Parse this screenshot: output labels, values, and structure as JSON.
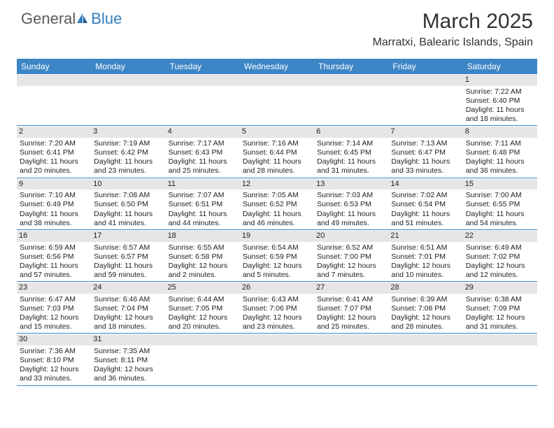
{
  "brand": {
    "name_part1": "General",
    "name_part2": "Blue",
    "color_gray": "#5a5a5a",
    "color_blue": "#2f7fbf"
  },
  "header": {
    "month_title": "March 2025",
    "location": "Marratxi, Balearic Islands, Spain"
  },
  "colors": {
    "header_bg": "#3d86c6",
    "daynum_bg": "#e6e6e6",
    "row_border": "#3d86c6"
  },
  "weekdays": [
    "Sunday",
    "Monday",
    "Tuesday",
    "Wednesday",
    "Thursday",
    "Friday",
    "Saturday"
  ],
  "weeks": [
    [
      {
        "n": "",
        "sr": "",
        "ss": "",
        "dl": ""
      },
      {
        "n": "",
        "sr": "",
        "ss": "",
        "dl": ""
      },
      {
        "n": "",
        "sr": "",
        "ss": "",
        "dl": ""
      },
      {
        "n": "",
        "sr": "",
        "ss": "",
        "dl": ""
      },
      {
        "n": "",
        "sr": "",
        "ss": "",
        "dl": ""
      },
      {
        "n": "",
        "sr": "",
        "ss": "",
        "dl": ""
      },
      {
        "n": "1",
        "sr": "Sunrise: 7:22 AM",
        "ss": "Sunset: 6:40 PM",
        "dl": "Daylight: 11 hours and 18 minutes."
      }
    ],
    [
      {
        "n": "2",
        "sr": "Sunrise: 7:20 AM",
        "ss": "Sunset: 6:41 PM",
        "dl": "Daylight: 11 hours and 20 minutes."
      },
      {
        "n": "3",
        "sr": "Sunrise: 7:19 AM",
        "ss": "Sunset: 6:42 PM",
        "dl": "Daylight: 11 hours and 23 minutes."
      },
      {
        "n": "4",
        "sr": "Sunrise: 7:17 AM",
        "ss": "Sunset: 6:43 PM",
        "dl": "Daylight: 11 hours and 25 minutes."
      },
      {
        "n": "5",
        "sr": "Sunrise: 7:16 AM",
        "ss": "Sunset: 6:44 PM",
        "dl": "Daylight: 11 hours and 28 minutes."
      },
      {
        "n": "6",
        "sr": "Sunrise: 7:14 AM",
        "ss": "Sunset: 6:45 PM",
        "dl": "Daylight: 11 hours and 31 minutes."
      },
      {
        "n": "7",
        "sr": "Sunrise: 7:13 AM",
        "ss": "Sunset: 6:47 PM",
        "dl": "Daylight: 11 hours and 33 minutes."
      },
      {
        "n": "8",
        "sr": "Sunrise: 7:11 AM",
        "ss": "Sunset: 6:48 PM",
        "dl": "Daylight: 11 hours and 36 minutes."
      }
    ],
    [
      {
        "n": "9",
        "sr": "Sunrise: 7:10 AM",
        "ss": "Sunset: 6:49 PM",
        "dl": "Daylight: 11 hours and 38 minutes."
      },
      {
        "n": "10",
        "sr": "Sunrise: 7:08 AM",
        "ss": "Sunset: 6:50 PM",
        "dl": "Daylight: 11 hours and 41 minutes."
      },
      {
        "n": "11",
        "sr": "Sunrise: 7:07 AM",
        "ss": "Sunset: 6:51 PM",
        "dl": "Daylight: 11 hours and 44 minutes."
      },
      {
        "n": "12",
        "sr": "Sunrise: 7:05 AM",
        "ss": "Sunset: 6:52 PM",
        "dl": "Daylight: 11 hours and 46 minutes."
      },
      {
        "n": "13",
        "sr": "Sunrise: 7:03 AM",
        "ss": "Sunset: 6:53 PM",
        "dl": "Daylight: 11 hours and 49 minutes."
      },
      {
        "n": "14",
        "sr": "Sunrise: 7:02 AM",
        "ss": "Sunset: 6:54 PM",
        "dl": "Daylight: 11 hours and 51 minutes."
      },
      {
        "n": "15",
        "sr": "Sunrise: 7:00 AM",
        "ss": "Sunset: 6:55 PM",
        "dl": "Daylight: 11 hours and 54 minutes."
      }
    ],
    [
      {
        "n": "16",
        "sr": "Sunrise: 6:59 AM",
        "ss": "Sunset: 6:56 PM",
        "dl": "Daylight: 11 hours and 57 minutes."
      },
      {
        "n": "17",
        "sr": "Sunrise: 6:57 AM",
        "ss": "Sunset: 6:57 PM",
        "dl": "Daylight: 11 hours and 59 minutes."
      },
      {
        "n": "18",
        "sr": "Sunrise: 6:55 AM",
        "ss": "Sunset: 6:58 PM",
        "dl": "Daylight: 12 hours and 2 minutes."
      },
      {
        "n": "19",
        "sr": "Sunrise: 6:54 AM",
        "ss": "Sunset: 6:59 PM",
        "dl": "Daylight: 12 hours and 5 minutes."
      },
      {
        "n": "20",
        "sr": "Sunrise: 6:52 AM",
        "ss": "Sunset: 7:00 PM",
        "dl": "Daylight: 12 hours and 7 minutes."
      },
      {
        "n": "21",
        "sr": "Sunrise: 6:51 AM",
        "ss": "Sunset: 7:01 PM",
        "dl": "Daylight: 12 hours and 10 minutes."
      },
      {
        "n": "22",
        "sr": "Sunrise: 6:49 AM",
        "ss": "Sunset: 7:02 PM",
        "dl": "Daylight: 12 hours and 12 minutes."
      }
    ],
    [
      {
        "n": "23",
        "sr": "Sunrise: 6:47 AM",
        "ss": "Sunset: 7:03 PM",
        "dl": "Daylight: 12 hours and 15 minutes."
      },
      {
        "n": "24",
        "sr": "Sunrise: 6:46 AM",
        "ss": "Sunset: 7:04 PM",
        "dl": "Daylight: 12 hours and 18 minutes."
      },
      {
        "n": "25",
        "sr": "Sunrise: 6:44 AM",
        "ss": "Sunset: 7:05 PM",
        "dl": "Daylight: 12 hours and 20 minutes."
      },
      {
        "n": "26",
        "sr": "Sunrise: 6:43 AM",
        "ss": "Sunset: 7:06 PM",
        "dl": "Daylight: 12 hours and 23 minutes."
      },
      {
        "n": "27",
        "sr": "Sunrise: 6:41 AM",
        "ss": "Sunset: 7:07 PM",
        "dl": "Daylight: 12 hours and 25 minutes."
      },
      {
        "n": "28",
        "sr": "Sunrise: 6:39 AM",
        "ss": "Sunset: 7:08 PM",
        "dl": "Daylight: 12 hours and 28 minutes."
      },
      {
        "n": "29",
        "sr": "Sunrise: 6:38 AM",
        "ss": "Sunset: 7:09 PM",
        "dl": "Daylight: 12 hours and 31 minutes."
      }
    ],
    [
      {
        "n": "30",
        "sr": "Sunrise: 7:36 AM",
        "ss": "Sunset: 8:10 PM",
        "dl": "Daylight: 12 hours and 33 minutes."
      },
      {
        "n": "31",
        "sr": "Sunrise: 7:35 AM",
        "ss": "Sunset: 8:11 PM",
        "dl": "Daylight: 12 hours and 36 minutes."
      },
      {
        "n": "",
        "sr": "",
        "ss": "",
        "dl": ""
      },
      {
        "n": "",
        "sr": "",
        "ss": "",
        "dl": ""
      },
      {
        "n": "",
        "sr": "",
        "ss": "",
        "dl": ""
      },
      {
        "n": "",
        "sr": "",
        "ss": "",
        "dl": ""
      },
      {
        "n": "",
        "sr": "",
        "ss": "",
        "dl": ""
      }
    ]
  ]
}
